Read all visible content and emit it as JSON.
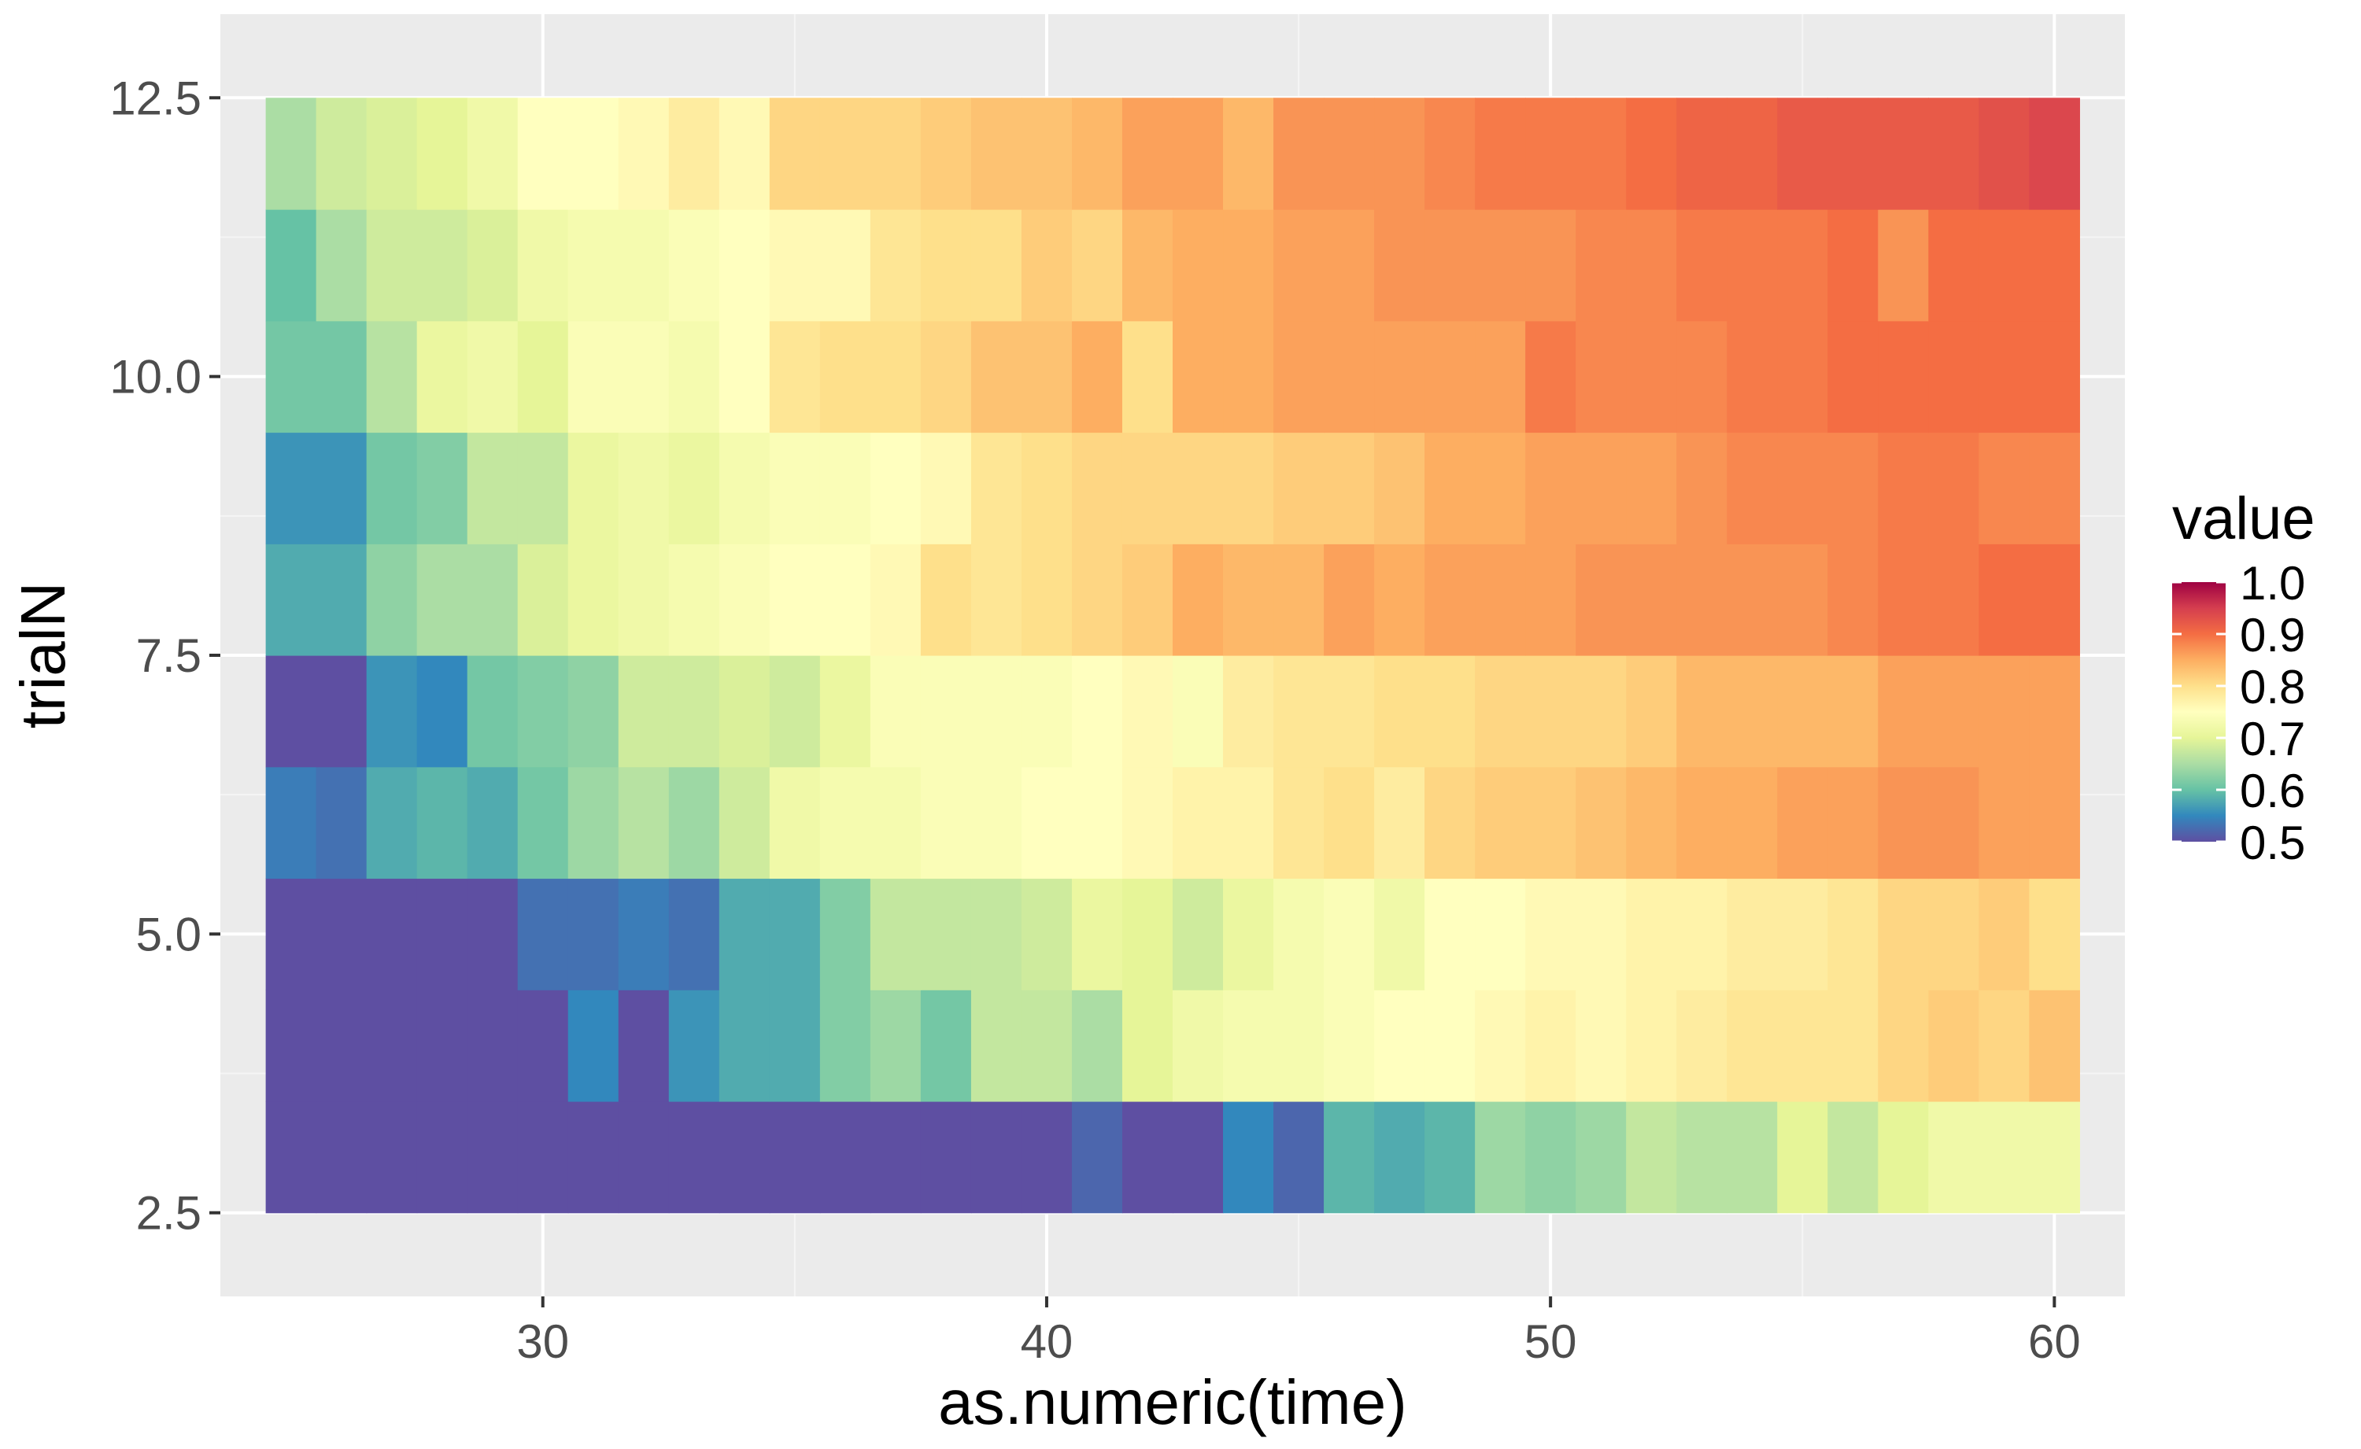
{
  "chart_data": {
    "type": "heatmap",
    "title": "",
    "xlabel": "as.numeric(time)",
    "ylabel": "trialN",
    "x": [
      25,
      26,
      27,
      28,
      29,
      30,
      31,
      32,
      33,
      34,
      35,
      36,
      37,
      38,
      39,
      40,
      41,
      42,
      43,
      44,
      45,
      46,
      47,
      48,
      49,
      50,
      51,
      52,
      53,
      54,
      55,
      56,
      57,
      58,
      59,
      60
    ],
    "y": [
      3,
      4,
      5,
      6,
      7,
      8,
      9,
      10,
      11,
      12
    ],
    "xlim": [
      23.6,
      61.4
    ],
    "ylim": [
      1.75,
      13.25
    ],
    "xticks": [
      30,
      40,
      50,
      60
    ],
    "xtick_labels": [
      "30",
      "40",
      "50",
      "60"
    ],
    "yticks": [
      2.5,
      5.0,
      7.5,
      10.0,
      12.5
    ],
    "ytick_labels": [
      "2.5",
      "5.0",
      "7.5",
      "10.0",
      "12.5"
    ],
    "values": [
      [
        0.5,
        0.5,
        0.5,
        0.5,
        0.5,
        0.5,
        0.5,
        0.5,
        0.5,
        0.5,
        0.5,
        0.5,
        0.5,
        0.5,
        0.5,
        0.5,
        0.52,
        0.5,
        0.5,
        0.55,
        0.52,
        0.59,
        0.58,
        0.59,
        0.64,
        0.63,
        0.64,
        0.67,
        0.66,
        0.66,
        0.7,
        0.67,
        0.7,
        0.72,
        0.72,
        0.72
      ],
      [
        0.5,
        0.5,
        0.5,
        0.5,
        0.5,
        0.5,
        0.55,
        0.5,
        0.56,
        0.58,
        0.58,
        0.62,
        0.64,
        0.61,
        0.67,
        0.67,
        0.65,
        0.7,
        0.72,
        0.73,
        0.73,
        0.74,
        0.75,
        0.75,
        0.76,
        0.77,
        0.76,
        0.77,
        0.78,
        0.79,
        0.79,
        0.79,
        0.81,
        0.82,
        0.81,
        0.83
      ],
      [
        0.5,
        0.5,
        0.5,
        0.5,
        0.5,
        0.53,
        0.53,
        0.54,
        0.53,
        0.58,
        0.58,
        0.62,
        0.67,
        0.67,
        0.67,
        0.68,
        0.71,
        0.7,
        0.68,
        0.71,
        0.73,
        0.74,
        0.72,
        0.75,
        0.75,
        0.76,
        0.76,
        0.77,
        0.77,
        0.78,
        0.78,
        0.79,
        0.81,
        0.81,
        0.82,
        0.8
      ],
      [
        0.54,
        0.53,
        0.58,
        0.59,
        0.58,
        0.61,
        0.64,
        0.66,
        0.64,
        0.68,
        0.72,
        0.73,
        0.73,
        0.74,
        0.74,
        0.75,
        0.75,
        0.76,
        0.77,
        0.77,
        0.79,
        0.8,
        0.78,
        0.81,
        0.82,
        0.82,
        0.83,
        0.84,
        0.85,
        0.85,
        0.86,
        0.86,
        0.87,
        0.87,
        0.86,
        0.86
      ],
      [
        0.5,
        0.5,
        0.56,
        0.55,
        0.61,
        0.62,
        0.63,
        0.68,
        0.68,
        0.69,
        0.68,
        0.71,
        0.74,
        0.74,
        0.74,
        0.74,
        0.75,
        0.76,
        0.74,
        0.78,
        0.79,
        0.79,
        0.8,
        0.8,
        0.81,
        0.81,
        0.81,
        0.82,
        0.84,
        0.84,
        0.84,
        0.84,
        0.86,
        0.86,
        0.86,
        0.86
      ],
      [
        0.58,
        0.58,
        0.63,
        0.65,
        0.65,
        0.69,
        0.71,
        0.72,
        0.73,
        0.74,
        0.75,
        0.75,
        0.76,
        0.8,
        0.79,
        0.8,
        0.81,
        0.82,
        0.85,
        0.84,
        0.84,
        0.86,
        0.85,
        0.86,
        0.86,
        0.86,
        0.87,
        0.87,
        0.87,
        0.87,
        0.87,
        0.88,
        0.89,
        0.89,
        0.9,
        0.9
      ],
      [
        0.56,
        0.56,
        0.61,
        0.62,
        0.67,
        0.67,
        0.71,
        0.72,
        0.71,
        0.73,
        0.74,
        0.74,
        0.75,
        0.76,
        0.79,
        0.8,
        0.81,
        0.81,
        0.81,
        0.81,
        0.82,
        0.82,
        0.83,
        0.85,
        0.85,
        0.86,
        0.86,
        0.86,
        0.87,
        0.88,
        0.88,
        0.88,
        0.89,
        0.89,
        0.88,
        0.88
      ],
      [
        0.61,
        0.61,
        0.66,
        0.71,
        0.72,
        0.7,
        0.74,
        0.74,
        0.73,
        0.75,
        0.79,
        0.8,
        0.8,
        0.81,
        0.83,
        0.83,
        0.85,
        0.8,
        0.85,
        0.85,
        0.86,
        0.86,
        0.86,
        0.86,
        0.86,
        0.89,
        0.88,
        0.88,
        0.88,
        0.89,
        0.89,
        0.9,
        0.9,
        0.9,
        0.9,
        0.9
      ],
      [
        0.6,
        0.65,
        0.68,
        0.68,
        0.69,
        0.72,
        0.73,
        0.73,
        0.74,
        0.75,
        0.76,
        0.76,
        0.79,
        0.8,
        0.8,
        0.82,
        0.81,
        0.84,
        0.85,
        0.85,
        0.86,
        0.86,
        0.87,
        0.87,
        0.87,
        0.87,
        0.88,
        0.88,
        0.89,
        0.89,
        0.89,
        0.9,
        0.87,
        0.9,
        0.9,
        0.9
      ],
      [
        0.65,
        0.68,
        0.69,
        0.7,
        0.72,
        0.75,
        0.75,
        0.76,
        0.78,
        0.76,
        0.81,
        0.81,
        0.81,
        0.82,
        0.83,
        0.83,
        0.84,
        0.86,
        0.86,
        0.84,
        0.87,
        0.87,
        0.87,
        0.88,
        0.89,
        0.89,
        0.89,
        0.9,
        0.91,
        0.91,
        0.92,
        0.92,
        0.92,
        0.92,
        0.93,
        0.94
      ]
    ],
    "legend": {
      "title": "value",
      "placement": "right",
      "breaks": [
        0.5,
        0.6,
        0.7,
        0.8,
        0.9,
        1.0
      ],
      "break_labels": [
        "0.5",
        "0.6",
        "0.7",
        "0.8",
        "0.9",
        "1.0"
      ],
      "limits": [
        0.5,
        1.0
      ]
    },
    "colorscale": "Spectral-reversed",
    "colors": {
      "panel_background": "#ebebeb",
      "grid_major": "#ffffff",
      "grid_minor": "#f5f5f5",
      "scale": [
        "#5E4FA2",
        "#3288BD",
        "#66C2A5",
        "#ABDDA4",
        "#E6F598",
        "#FFFFBF",
        "#FEE08B",
        "#FDAE61",
        "#F46D43",
        "#D53E4F",
        "#9E0142"
      ]
    }
  }
}
